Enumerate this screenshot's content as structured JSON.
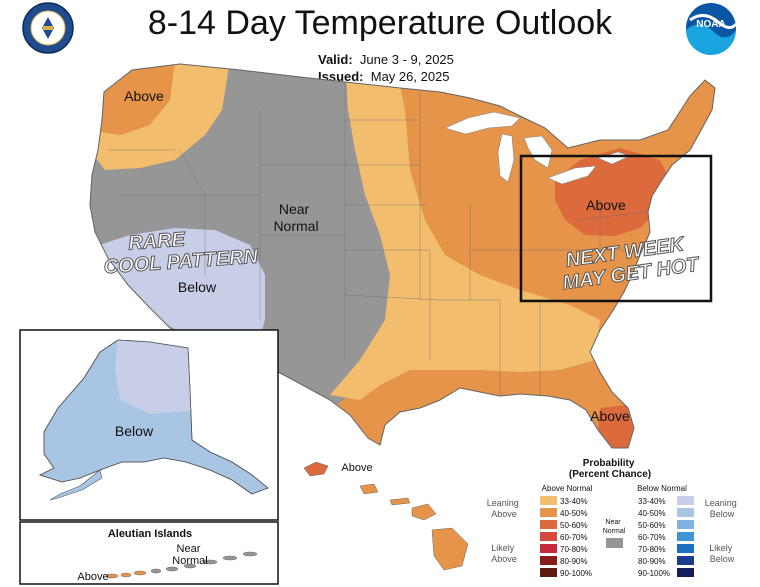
{
  "header": {
    "title": "8-14 Day Temperature Outlook",
    "valid_label": "Valid:",
    "valid_value": "June 3 - 9, 2025",
    "issued_label": "Issued:",
    "issued_value": "May 26, 2025",
    "left_seal_text": "DEPARTMENT OF COMMERCE · UNITED STATES OF AMERICA",
    "right_logo_text": "NOAA"
  },
  "map_labels": {
    "pacific_nw": "Above",
    "central": "Near\nNormal",
    "southwest": "Below",
    "northeast": "Above",
    "florida": "Above",
    "alaska": "Below",
    "hawaii": "Above",
    "aleutian_title": "Aleutian Islands",
    "aleutian_near": "Near\nNormal",
    "aleutian_above": "Above"
  },
  "annotations": {
    "cool": "RARE\nCOOL PATTERN",
    "hot": "NEXT WEEK\nMAY GET HOT"
  },
  "legend": {
    "title": "Probability\n(Percent Chance)",
    "above_header": "Above Normal",
    "below_header": "Below Normal",
    "near_label": "Near\nNormal",
    "leaning_above": "Leaning\nAbove",
    "likely_above": "Likely\nAbove",
    "leaning_below": "Leaning\nBelow",
    "likely_below": "Likely\nBelow",
    "above_bins": [
      {
        "label": "33-40%",
        "color": "#f2be6e"
      },
      {
        "label": "40-50%",
        "color": "#e59449"
      },
      {
        "label": "50-60%",
        "color": "#dc6a3d"
      },
      {
        "label": "60-70%",
        "color": "#d44b3d"
      },
      {
        "label": "70-80%",
        "color": "#c8283c"
      },
      {
        "label": "80-90%",
        "color": "#8b1a1a"
      },
      {
        "label": "90-100%",
        "color": "#5c1a10"
      }
    ],
    "below_bins": [
      {
        "label": "33-40%",
        "color": "#c8cde8"
      },
      {
        "label": "40-50%",
        "color": "#a8c5e3"
      },
      {
        "label": "50-60%",
        "color": "#7eb3e0"
      },
      {
        "label": "60-70%",
        "color": "#3f94d8"
      },
      {
        "label": "70-80%",
        "color": "#1f6fc0"
      },
      {
        "label": "80-90%",
        "color": "#1b3c8c"
      },
      {
        "label": "90-100%",
        "color": "#161d5c"
      }
    ],
    "near_color": "#969696"
  },
  "colors": {
    "near_normal": "#969696",
    "leaning_above": "#f2be6e",
    "above_40_50": "#e59449",
    "above_50_60": "#dc6a3d",
    "leaning_below": "#c8cde8",
    "below_40_50": "#a8c5e3",
    "highlight_box": "#111111"
  }
}
